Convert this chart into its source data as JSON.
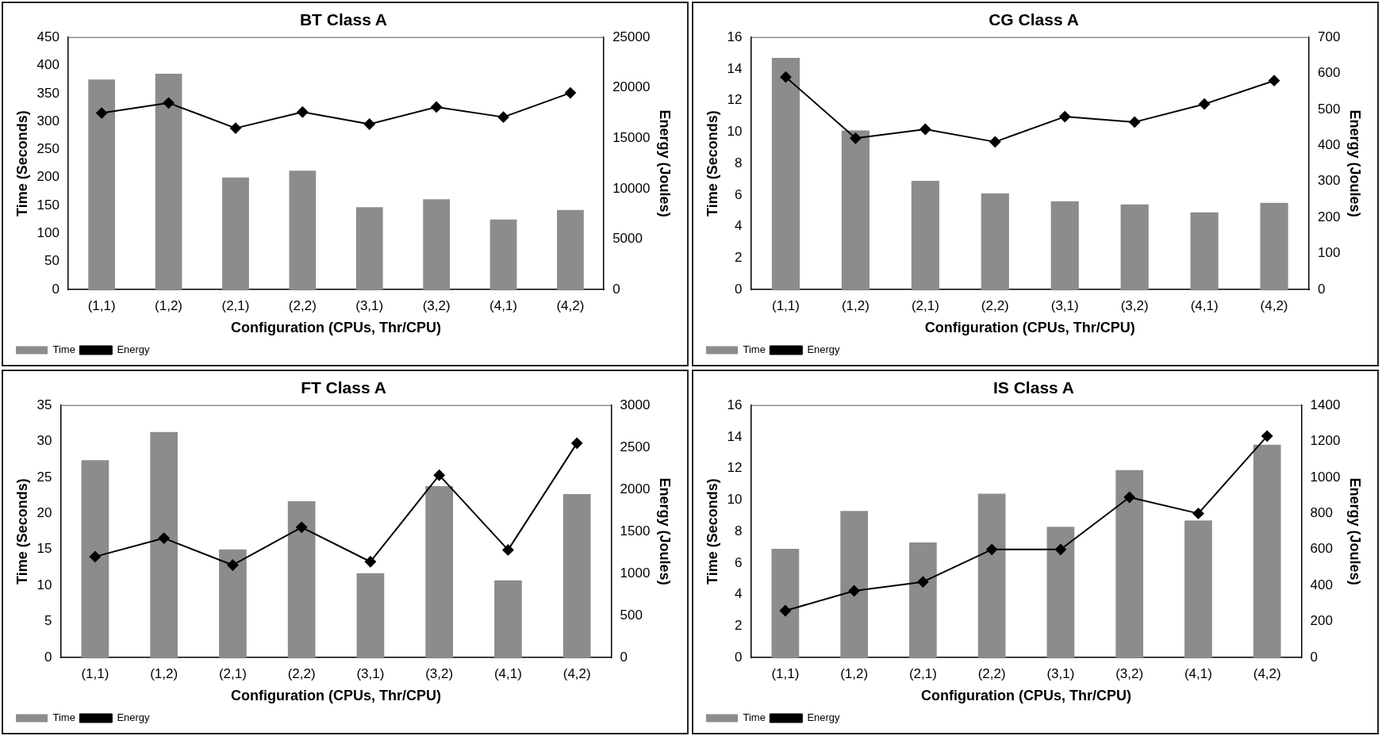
{
  "chart_data": [
    {
      "type": "bar",
      "title": "BT Class A",
      "xlabel": "Configuration (CPUs, Thr/CPU)",
      "ylabel": "Time (Seconds)",
      "y2label": "Energy (Joules)",
      "categories": [
        "(1,1)",
        "(1,2)",
        "(2,1)",
        "(2,2)",
        "(3,1)",
        "(3,2)",
        "(4,1)",
        "(4,2)"
      ],
      "series": [
        {
          "name": "Time",
          "type": "bar",
          "color": "#8c8c8c",
          "values": [
            375,
            385,
            200,
            212,
            147,
            161,
            125,
            142
          ]
        },
        {
          "name": "Energy",
          "type": "line",
          "axis": "y2",
          "color": "#000000",
          "values": [
            17500,
            18500,
            16000,
            17600,
            16400,
            18100,
            17100,
            19500
          ]
        }
      ],
      "ylim": [
        0,
        450
      ],
      "yticks": [
        0,
        50,
        100,
        150,
        200,
        250,
        300,
        350,
        400,
        450
      ],
      "y2lim": [
        0,
        25000
      ],
      "y2ticks": [
        0,
        5000,
        10000,
        15000,
        20000,
        25000
      ],
      "grid": false,
      "legend": "bottom left",
      "marker": "diamond",
      "line_style": "solid"
    },
    {
      "type": "bar",
      "title": "CG Class A",
      "xlabel": "Configuration (CPUs, Thr/CPU)",
      "ylabel": "Time (Seconds)",
      "y2label": "Energy (Joules)",
      "categories": [
        "(1,1)",
        "(1,2)",
        "(2,1)",
        "(2,2)",
        "(3,1)",
        "(3,2)",
        "(4,1)",
        "(4,2)"
      ],
      "series": [
        {
          "name": "Time",
          "type": "bar",
          "color": "#8c8c8c",
          "values": [
            14.7,
            10.1,
            6.9,
            6.1,
            5.6,
            5.4,
            4.9,
            5.5
          ]
        },
        {
          "name": "Energy",
          "type": "line",
          "axis": "y2",
          "color": "#000000",
          "values": [
            590,
            420,
            445,
            410,
            480,
            465,
            515,
            580
          ]
        }
      ],
      "ylim": [
        0,
        16
      ],
      "yticks": [
        0,
        2,
        4,
        6,
        8,
        10,
        12,
        14,
        16
      ],
      "y2lim": [
        0,
        700
      ],
      "y2ticks": [
        0,
        100,
        200,
        300,
        400,
        500,
        600,
        700
      ],
      "grid": false,
      "legend": "bottom left",
      "marker": "diamond",
      "line_style": "solid"
    },
    {
      "type": "bar",
      "title": "FT Class A",
      "xlabel": "Configuration (CPUs, Thr/CPU)",
      "ylabel": "Time (Seconds)",
      "y2label": "Energy (Joules)",
      "categories": [
        "(1,1)",
        "(1,2)",
        "(2,1)",
        "(2,2)",
        "(3,1)",
        "(3,2)",
        "(4,1)",
        "(4,2)"
      ],
      "series": [
        {
          "name": "Time",
          "type": "bar",
          "color": "#8c8c8c",
          "values": [
            27.4,
            31.3,
            15,
            21.7,
            11.7,
            23.8,
            10.7,
            22.7
          ]
        },
        {
          "name": "Energy",
          "type": "line",
          "axis": "y2",
          "color": "#000000",
          "values": [
            1200,
            1420,
            1100,
            1550,
            1140,
            2170,
            1280,
            2550
          ]
        }
      ],
      "ylim": [
        0,
        35
      ],
      "yticks": [
        0,
        5,
        10,
        15,
        20,
        25,
        30,
        35
      ],
      "y2lim": [
        0,
        3000
      ],
      "y2ticks": [
        0,
        500,
        1000,
        1500,
        2000,
        2500,
        3000
      ],
      "grid": false,
      "legend": "bottom left",
      "marker": "diamond",
      "line_style": "solid"
    },
    {
      "type": "bar",
      "title": "IS Class A",
      "xlabel": "Configuration (CPUs, Thr/CPU)",
      "ylabel": "Time (Seconds)",
      "y2label": "Energy (Joules)",
      "categories": [
        "(1,1)",
        "(1,2)",
        "(2,1)",
        "(2,2)",
        "(3,1)",
        "(3,2)",
        "(4,1)",
        "(4,2)"
      ],
      "series": [
        {
          "name": "Time",
          "type": "bar",
          "color": "#8c8c8c",
          "values": [
            6.9,
            9.3,
            7.3,
            10.4,
            8.3,
            11.9,
            8.7,
            13.5
          ]
        },
        {
          "name": "Energy",
          "type": "line",
          "axis": "y2",
          "color": "#000000",
          "values": [
            260,
            370,
            420,
            600,
            600,
            890,
            800,
            1230
          ]
        }
      ],
      "ylim": [
        0,
        16
      ],
      "yticks": [
        0,
        2,
        4,
        6,
        8,
        10,
        12,
        14,
        16
      ],
      "y2lim": [
        0,
        1400
      ],
      "y2ticks": [
        0,
        200,
        400,
        600,
        800,
        1000,
        1200,
        1400
      ],
      "grid": false,
      "legend": "bottom left",
      "marker": "diamond",
      "line_style": "solid"
    }
  ]
}
